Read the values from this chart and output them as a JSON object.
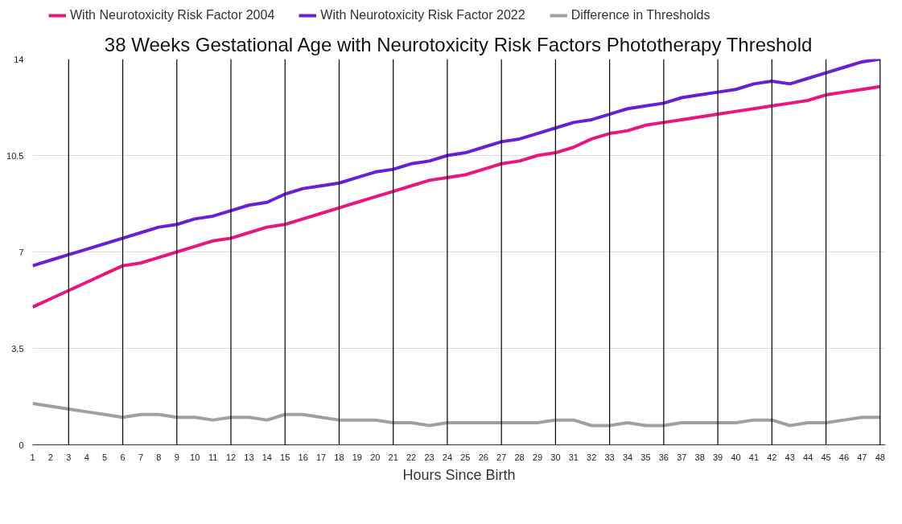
{
  "chart_data": {
    "type": "line",
    "title": "38 Weeks Gestational Age with Neurotoxicity Risk Factors Phototherapy Threshold",
    "xlabel": "Hours Since Birth",
    "x": [
      1,
      2,
      3,
      4,
      5,
      6,
      7,
      8,
      9,
      10,
      11,
      12,
      13,
      14,
      15,
      16,
      17,
      18,
      19,
      20,
      21,
      22,
      23,
      24,
      25,
      26,
      27,
      28,
      29,
      30,
      31,
      32,
      33,
      34,
      35,
      36,
      37,
      38,
      39,
      40,
      41,
      42,
      43,
      44,
      45,
      46,
      47,
      48
    ],
    "series": [
      {
        "name": "With Neurotoxicity Risk Factor 2004",
        "color": "#e8177f",
        "values": [
          5.0,
          5.3,
          5.6,
          5.9,
          6.2,
          6.5,
          6.6,
          6.8,
          7.0,
          7.2,
          7.4,
          7.5,
          7.7,
          7.9,
          8.0,
          8.2,
          8.4,
          8.6,
          8.8,
          9.0,
          9.2,
          9.4,
          9.6,
          9.7,
          9.8,
          10.0,
          10.2,
          10.3,
          10.5,
          10.6,
          10.8,
          11.1,
          11.3,
          11.4,
          11.6,
          11.7,
          11.8,
          11.9,
          12.0,
          12.1,
          12.2,
          12.3,
          12.4,
          12.5,
          12.7,
          12.8,
          12.9,
          13.0
        ]
      },
      {
        "name": "With Neurotoxicity Risk Factor 2022",
        "color": "#6a1fd6",
        "values": [
          6.5,
          6.7,
          6.9,
          7.1,
          7.3,
          7.5,
          7.7,
          7.9,
          8.0,
          8.2,
          8.3,
          8.5,
          8.7,
          8.8,
          9.1,
          9.3,
          9.4,
          9.5,
          9.7,
          9.9,
          10.0,
          10.2,
          10.3,
          10.5,
          10.6,
          10.8,
          11.0,
          11.1,
          11.3,
          11.5,
          11.7,
          11.8,
          12.0,
          12.2,
          12.3,
          12.4,
          12.6,
          12.7,
          12.8,
          12.9,
          13.1,
          13.2,
          13.1,
          13.3,
          13.5,
          13.7,
          13.9,
          14.0
        ]
      },
      {
        "name": "Difference in Thresholds",
        "color": "#a0a0a0",
        "values": [
          1.5,
          1.4,
          1.3,
          1.2,
          1.1,
          1.0,
          1.1,
          1.1,
          1.0,
          1.0,
          0.9,
          1.0,
          1.0,
          0.9,
          1.1,
          1.1,
          1.0,
          0.9,
          0.9,
          0.9,
          0.8,
          0.8,
          0.7,
          0.8,
          0.8,
          0.8,
          0.8,
          0.8,
          0.8,
          0.9,
          0.9,
          0.7,
          0.7,
          0.8,
          0.7,
          0.7,
          0.8,
          0.8,
          0.8,
          0.8,
          0.9,
          0.9,
          0.7,
          0.8,
          0.8,
          0.9,
          1.0,
          1.0
        ]
      }
    ],
    "xlim": [
      1,
      48.3
    ],
    "xticks": [
      1,
      2,
      3,
      4,
      5,
      6,
      7,
      8,
      9,
      10,
      11,
      12,
      13,
      14,
      15,
      16,
      17,
      18,
      19,
      20,
      21,
      22,
      23,
      24,
      25,
      26,
      27,
      28,
      29,
      30,
      31,
      32,
      33,
      34,
      35,
      36,
      37,
      38,
      39,
      40,
      41,
      42,
      43,
      44,
      45,
      46,
      47,
      48
    ],
    "ylim": [
      0,
      14
    ],
    "yticks": [
      0,
      3.5,
      7,
      10.5,
      14
    ],
    "ref_lines": [
      {
        "axis": "x",
        "value": 3,
        "color": "#000000"
      },
      {
        "axis": "x",
        "value": 6,
        "color": "#000000"
      },
      {
        "axis": "x",
        "value": 9,
        "color": "#000000"
      },
      {
        "axis": "x",
        "value": 12,
        "color": "#000000"
      },
      {
        "axis": "x",
        "value": 15,
        "color": "#000000"
      },
      {
        "axis": "x",
        "value": 18,
        "color": "#000000"
      },
      {
        "axis": "x",
        "value": 21,
        "color": "#000000"
      },
      {
        "axis": "x",
        "value": 24,
        "color": "#000000"
      },
      {
        "axis": "x",
        "value": 27,
        "color": "#000000"
      },
      {
        "axis": "x",
        "value": 30,
        "color": "#000000"
      },
      {
        "axis": "x",
        "value": 33,
        "color": "#000000"
      },
      {
        "axis": "x",
        "value": 36,
        "color": "#000000"
      },
      {
        "axis": "x",
        "value": 39,
        "color": "#000000"
      },
      {
        "axis": "x",
        "value": 42,
        "color": "#000000"
      },
      {
        "axis": "x",
        "value": 45,
        "color": "#000000"
      },
      {
        "axis": "x",
        "value": 48,
        "color": "#000000"
      }
    ],
    "grid": "y",
    "legend": "top",
    "marker": "none",
    "line_style": "solid"
  }
}
